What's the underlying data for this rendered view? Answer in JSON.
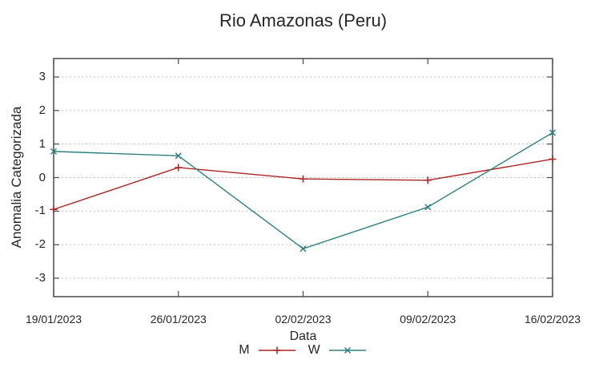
{
  "chart_data": {
    "type": "line",
    "title": "Rio Amazonas (Peru)",
    "xlabel": "Data",
    "ylabel": "Anomalia Categorizada",
    "x_tick_labels": [
      "19/01/2023",
      "26/01/2023",
      "02/02/2023",
      "09/02/2023",
      "16/02/2023"
    ],
    "y_ticks": [
      -3,
      -2,
      -1,
      0,
      1,
      2,
      3
    ],
    "ylim": [
      -3.55,
      3.55
    ],
    "grid": "horizontal dotted lines at each y tick",
    "border": "full box with mirrored inward tick marks",
    "legend_position": "bottom-center below x axis label",
    "series": [
      {
        "name": "M",
        "color": "#ab2523",
        "marker": "plus",
        "values": [
          -0.95,
          0.3,
          -0.04,
          -0.08,
          0.55
        ]
      },
      {
        "name": "W",
        "color": "#2e8080",
        "marker": "x",
        "values": [
          0.78,
          0.65,
          -2.12,
          -0.88,
          1.34
        ]
      }
    ],
    "colors": {
      "background": "#ffffff",
      "axis": "#4a4a4a",
      "grid": "#bdbdbd",
      "text": "#262626"
    }
  }
}
